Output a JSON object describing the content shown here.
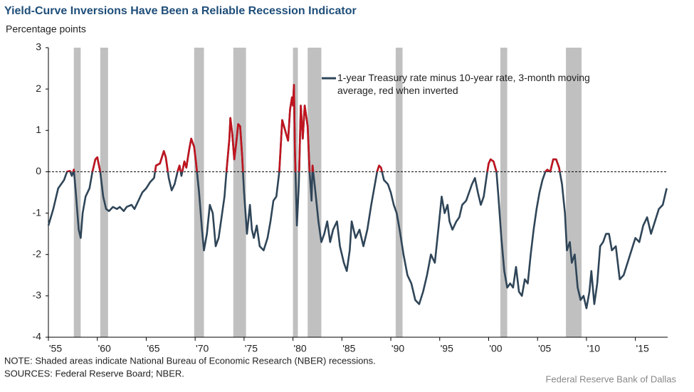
{
  "chart_data": {
    "type": "line",
    "title": "Yield-Curve Inversions Have Been a Reliable Recession Indicator",
    "y_axis_label": "Percentage points",
    "note": "NOTE: Shaded areas indicate National Bureau of Economic Research (NBER) recessions.",
    "sources": "SOURCES: Federal Reserve Board; NBER.",
    "credit": "Federal Reserve Bank of Dallas",
    "xlim": [
      1955,
      2018.3
    ],
    "ylim": [
      -4,
      3
    ],
    "yticks": [
      -4,
      -3,
      -2,
      -1,
      0,
      1,
      2,
      3
    ],
    "xticks": [
      {
        "value": 1955,
        "label": "'55"
      },
      {
        "value": 1960,
        "label": "'60"
      },
      {
        "value": 1965,
        "label": "'65"
      },
      {
        "value": 1970,
        "label": "'70"
      },
      {
        "value": 1975,
        "label": "'75"
      },
      {
        "value": 1980,
        "label": "'80"
      },
      {
        "value": 1985,
        "label": "'85"
      },
      {
        "value": 1990,
        "label": "'90"
      },
      {
        "value": 1995,
        "label": "'95"
      },
      {
        "value": 2000,
        "label": "'00"
      },
      {
        "value": 2005,
        "label": "'05"
      },
      {
        "value": 2010,
        "label": "'10"
      },
      {
        "value": 2015,
        "label": "'15"
      }
    ],
    "reference_line": 0,
    "recession_color": "#c0c0c0",
    "recessions": [
      [
        1957.6,
        1958.3
      ],
      [
        1960.3,
        1961.1
      ],
      [
        1969.9,
        1970.9
      ],
      [
        1973.9,
        1975.2
      ],
      [
        1980.0,
        1980.5
      ],
      [
        1981.5,
        1982.9
      ],
      [
        1990.5,
        1991.2
      ],
      [
        2001.2,
        2001.9
      ],
      [
        2007.9,
        2009.5
      ]
    ],
    "x": [
      1955.0,
      1955.5,
      1956.0,
      1956.3,
      1956.6,
      1956.9,
      1957.2,
      1957.4,
      1957.6,
      1957.8,
      1958.1,
      1958.3,
      1958.5,
      1958.8,
      1959.2,
      1959.5,
      1959.8,
      1960.0,
      1960.3,
      1960.6,
      1960.9,
      1961.2,
      1961.6,
      1962.0,
      1962.3,
      1962.7,
      1963.0,
      1963.5,
      1963.8,
      1964.2,
      1964.6,
      1965.0,
      1965.4,
      1965.8,
      1966.0,
      1966.4,
      1966.8,
      1967.0,
      1967.3,
      1967.6,
      1967.9,
      1968.2,
      1968.4,
      1968.6,
      1968.9,
      1969.1,
      1969.4,
      1969.6,
      1969.9,
      1970.1,
      1970.4,
      1970.7,
      1970.9,
      1971.2,
      1971.5,
      1971.8,
      1972.1,
      1972.4,
      1972.7,
      1973.0,
      1973.2,
      1973.5,
      1973.6,
      1973.8,
      1974.0,
      1974.2,
      1974.4,
      1974.6,
      1974.8,
      1975.0,
      1975.3,
      1975.6,
      1975.8,
      1976.0,
      1976.3,
      1976.6,
      1977.0,
      1977.4,
      1977.7,
      1978.0,
      1978.3,
      1978.6,
      1978.9,
      1979.2,
      1979.5,
      1979.7,
      1979.9,
      1980.0,
      1980.1,
      1980.2,
      1980.4,
      1980.6,
      1980.8,
      1981.0,
      1981.2,
      1981.5,
      1981.7,
      1981.9,
      1982.0,
      1982.3,
      1982.6,
      1982.9,
      1983.2,
      1983.5,
      1983.8,
      1984.1,
      1984.5,
      1984.8,
      1985.2,
      1985.5,
      1985.8,
      1986.0,
      1986.4,
      1986.8,
      1987.2,
      1987.6,
      1988.0,
      1988.3,
      1988.6,
      1988.8,
      1989.0,
      1989.3,
      1989.7,
      1990.0,
      1990.3,
      1990.6,
      1990.9,
      1991.3,
      1991.7,
      1992.1,
      1992.5,
      1992.9,
      1993.3,
      1993.7,
      1994.1,
      1994.5,
      1994.9,
      1995.2,
      1995.5,
      1995.8,
      1996.0,
      1996.3,
      1996.7,
      1997.0,
      1997.3,
      1997.7,
      1998.0,
      1998.3,
      1998.6,
      1998.9,
      1999.2,
      1999.5,
      1999.8,
      2000.0,
      2000.2,
      2000.5,
      2000.8,
      2001.0,
      2001.3,
      2001.6,
      2001.9,
      2002.2,
      2002.5,
      2002.8,
      2003.1,
      2003.4,
      2003.7,
      2004.0,
      2004.3,
      2004.6,
      2004.9,
      2005.2,
      2005.5,
      2005.8,
      2006.0,
      2006.3,
      2006.6,
      2006.9,
      2007.2,
      2007.5,
      2007.8,
      2008.0,
      2008.3,
      2008.5,
      2008.8,
      2009.1,
      2009.4,
      2009.7,
      2010.0,
      2010.3,
      2010.5,
      2010.8,
      2011.1,
      2011.4,
      2011.7,
      2012.0,
      2012.3,
      2012.6,
      2013.0,
      2013.4,
      2013.8,
      2014.2,
      2014.6,
      2015.0,
      2015.4,
      2015.8,
      2016.2,
      2016.6,
      2017.0,
      2017.4,
      2017.8,
      2018.2
    ],
    "series": [
      {
        "name": "1-year Treasury rate minus 10-year rate, 3-month moving average, red when inverted",
        "color": "#2f4558",
        "inverted_color": "#c0141f",
        "values": [
          -1.3,
          -0.9,
          -0.4,
          -0.3,
          -0.2,
          0.0,
          0.02,
          -0.1,
          0.05,
          -0.5,
          -1.4,
          -1.6,
          -1.0,
          -0.6,
          -0.4,
          0.0,
          0.3,
          0.35,
          0.0,
          -0.6,
          -0.9,
          -0.95,
          -0.85,
          -0.9,
          -0.85,
          -0.95,
          -0.85,
          -0.8,
          -0.9,
          -0.7,
          -0.5,
          -0.4,
          -0.25,
          -0.15,
          0.15,
          0.2,
          0.5,
          0.35,
          -0.15,
          -0.45,
          -0.3,
          0.0,
          0.15,
          -0.1,
          0.25,
          0.1,
          0.55,
          0.8,
          0.6,
          0.2,
          -0.5,
          -1.4,
          -1.9,
          -1.5,
          -0.8,
          -1.0,
          -1.8,
          -1.6,
          -1.1,
          -0.6,
          0.0,
          0.8,
          1.3,
          0.9,
          0.3,
          0.7,
          1.15,
          1.1,
          0.4,
          -0.5,
          -1.5,
          -0.8,
          -1.4,
          -1.6,
          -1.3,
          -1.8,
          -1.9,
          -1.6,
          -1.2,
          -0.7,
          -0.6,
          0.0,
          1.25,
          1.0,
          0.75,
          1.5,
          1.8,
          1.6,
          2.1,
          0.5,
          -1.3,
          -0.3,
          1.6,
          0.8,
          1.6,
          1.1,
          0.0,
          -0.7,
          0.15,
          -0.5,
          -1.2,
          -1.7,
          -1.5,
          -1.2,
          -1.7,
          -1.4,
          -1.2,
          -1.8,
          -2.2,
          -2.4,
          -1.9,
          -1.2,
          -1.6,
          -1.4,
          -1.8,
          -1.4,
          -0.8,
          -0.4,
          0.0,
          0.15,
          0.1,
          -0.2,
          -0.3,
          -0.5,
          -0.8,
          -1.0,
          -1.4,
          -2.0,
          -2.5,
          -2.7,
          -3.1,
          -3.2,
          -2.9,
          -2.5,
          -2.0,
          -2.2,
          -1.3,
          -0.6,
          -1.0,
          -0.8,
          -1.2,
          -1.4,
          -1.2,
          -1.1,
          -0.8,
          -0.7,
          -0.5,
          -0.3,
          -0.15,
          -0.5,
          -0.8,
          -0.6,
          -0.1,
          0.2,
          0.3,
          0.25,
          0.0,
          -0.6,
          -1.6,
          -2.4,
          -2.8,
          -2.7,
          -2.8,
          -2.3,
          -2.9,
          -3.0,
          -2.6,
          -2.7,
          -2.0,
          -1.4,
          -0.9,
          -0.5,
          -0.2,
          0.0,
          0.05,
          0.0,
          0.3,
          0.3,
          0.1,
          -0.3,
          -1.0,
          -1.9,
          -1.7,
          -2.2,
          -2.0,
          -2.8,
          -3.1,
          -3.0,
          -3.3,
          -2.9,
          -2.4,
          -3.2,
          -2.7,
          -1.8,
          -1.7,
          -1.5,
          -1.5,
          -1.9,
          -1.8,
          -2.6,
          -2.5,
          -2.2,
          -1.9,
          -1.6,
          -1.7,
          -1.3,
          -1.1,
          -1.5,
          -1.2,
          -0.9,
          -0.8,
          -0.4
        ]
      }
    ]
  }
}
